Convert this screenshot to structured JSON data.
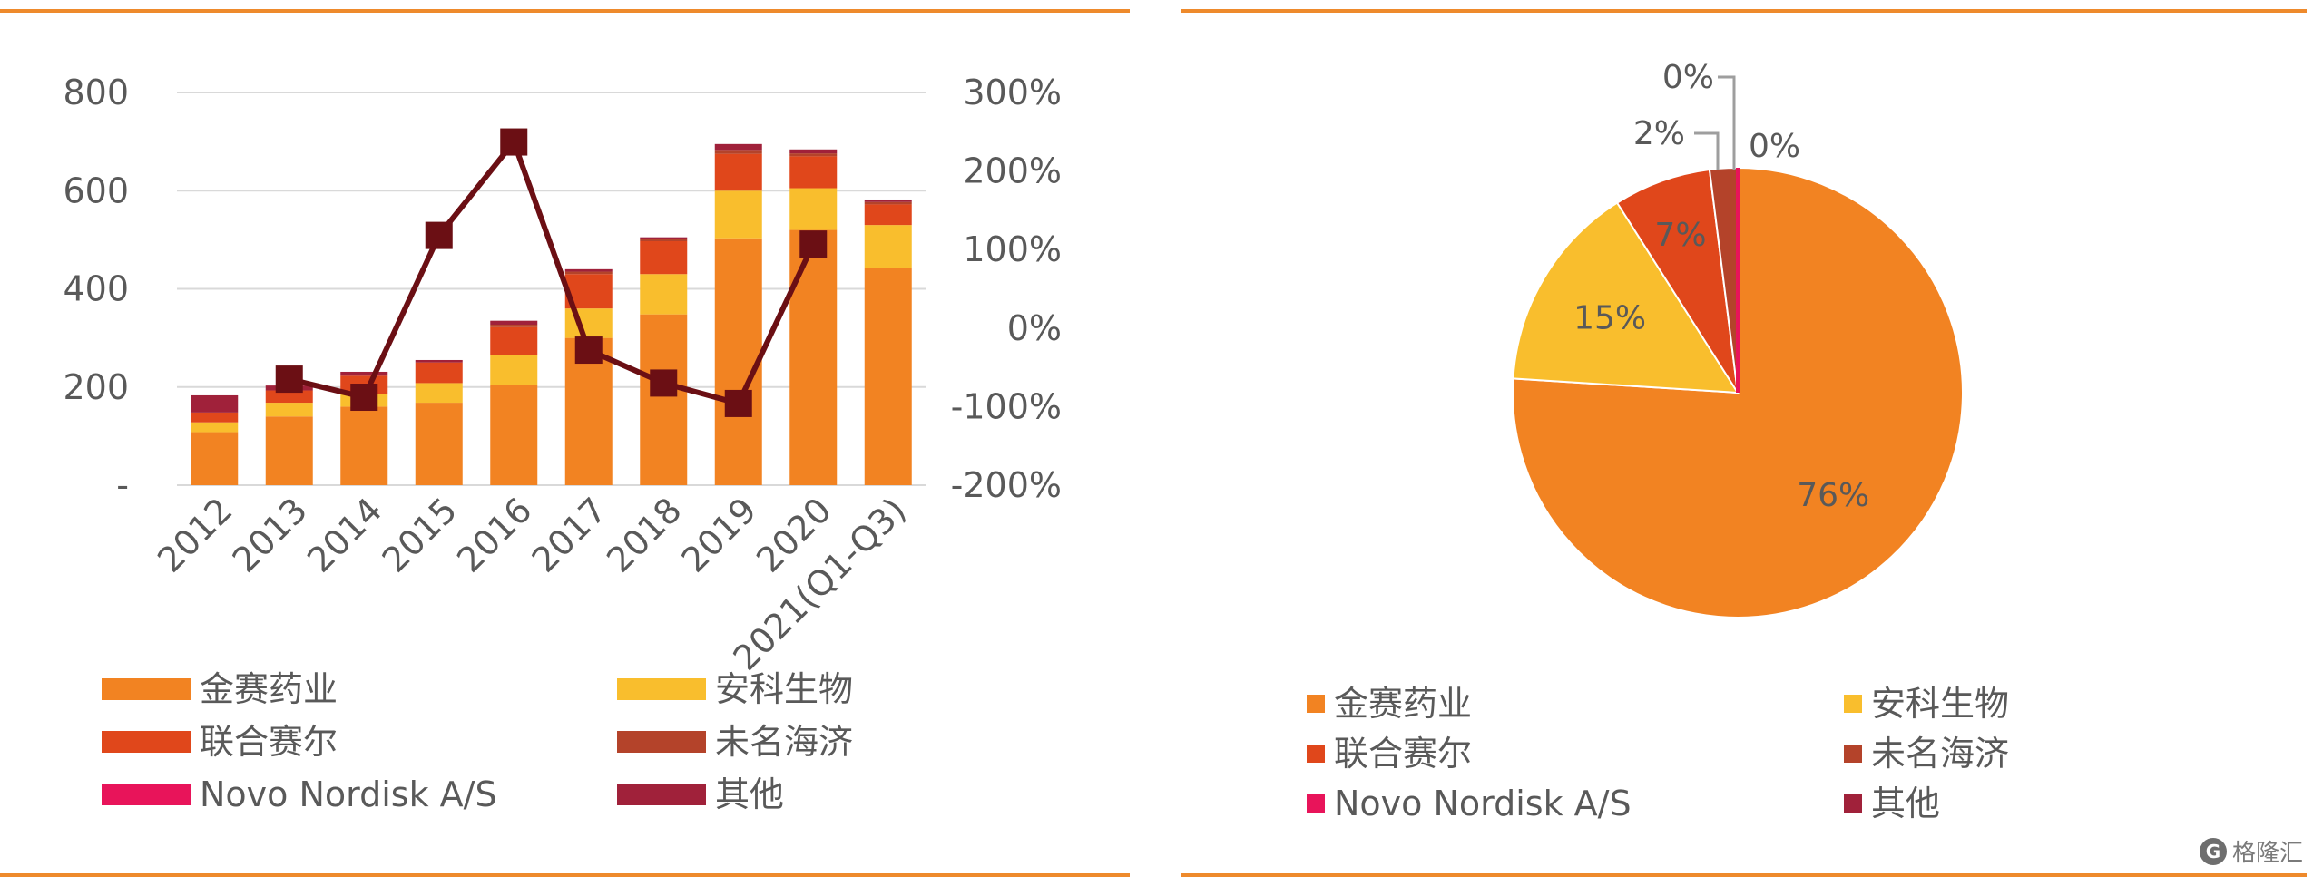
{
  "chart_data": [
    {
      "type": "bar",
      "stacked": true,
      "categories": [
        "2012",
        "2013",
        "2014",
        "2015",
        "2016",
        "2017",
        "2018",
        "2019",
        "2020",
        "2021(Q1-Q3)"
      ],
      "series": [
        {
          "name": "金赛药业",
          "color": "#f28322",
          "values": [
            108,
            140,
            160,
            168,
            205,
            300,
            348,
            503,
            520,
            442
          ]
        },
        {
          "name": "安科生物",
          "color": "#f9be2d",
          "values": [
            20,
            28,
            25,
            40,
            60,
            60,
            82,
            97,
            85,
            88
          ]
        },
        {
          "name": "联合赛尔",
          "color": "#e0471b",
          "values": [
            20,
            25,
            38,
            42,
            57,
            70,
            67,
            75,
            65,
            42
          ]
        },
        {
          "name": "未名海济",
          "color": "#b4432a",
          "values": [
            0,
            0,
            0,
            0,
            5,
            5,
            5,
            8,
            6,
            5
          ]
        },
        {
          "name": "Novo Nordisk A/S",
          "color": "#e8145a",
          "values": [
            0,
            0,
            0,
            0,
            0,
            0,
            0,
            0,
            0,
            0
          ]
        },
        {
          "name": "其他",
          "color": "#a0213a",
          "values": [
            35,
            10,
            8,
            5,
            8,
            5,
            3,
            12,
            8,
            5
          ]
        }
      ],
      "line": {
        "color": "#6b0f14",
        "values": [
          null,
          -65,
          -88,
          118,
          237,
          -28,
          -70,
          -96,
          107,
          null
        ]
      },
      "left_axis": {
        "ylim": [
          0,
          800
        ],
        "ticks": [
          "-",
          "200",
          "400",
          "600",
          "800"
        ]
      },
      "right_axis": {
        "ylim": [
          -200,
          300
        ],
        "ticks": [
          "-200%",
          "-100%",
          "0%",
          "100%",
          "200%",
          "300%"
        ]
      },
      "grid": true,
      "legend_position": "bottom"
    },
    {
      "type": "pie",
      "slices": [
        {
          "name": "金赛药业",
          "value": 76,
          "label": "76%",
          "color": "#f28322"
        },
        {
          "name": "安科生物",
          "value": 15,
          "label": "15%",
          "color": "#f9be2d"
        },
        {
          "name": "联合赛尔",
          "value": 7,
          "label": "7%",
          "color": "#e0471b"
        },
        {
          "name": "未名海济",
          "value": 2,
          "label": "2%",
          "color": "#b4432a"
        },
        {
          "name": "Novo Nordisk A/S",
          "value": 0,
          "label": "0%",
          "color": "#e8145a"
        },
        {
          "name": "其他",
          "value": 0,
          "label": "0%",
          "color": "#a0213a"
        }
      ],
      "legend_position": "bottom"
    }
  ],
  "watermark": "格隆汇"
}
